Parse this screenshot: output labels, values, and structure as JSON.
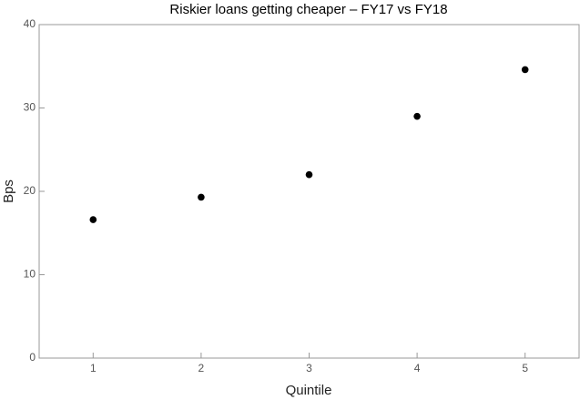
{
  "chart_data": {
    "type": "scatter",
    "title": "Riskier loans getting cheaper – FY17 vs FY18",
    "x_label": "Quintile",
    "y_label": "Bps",
    "x": [
      1,
      2,
      3,
      4,
      5
    ],
    "values": [
      16.6,
      19.3,
      22.0,
      29.0,
      34.6
    ],
    "color": "#000000",
    "xlim": [
      0.5,
      5.5
    ],
    "xticks": [
      1,
      2,
      3,
      4,
      5
    ],
    "ylim": [
      0,
      40
    ],
    "yticks": [
      0,
      10,
      20,
      30,
      40
    ]
  }
}
